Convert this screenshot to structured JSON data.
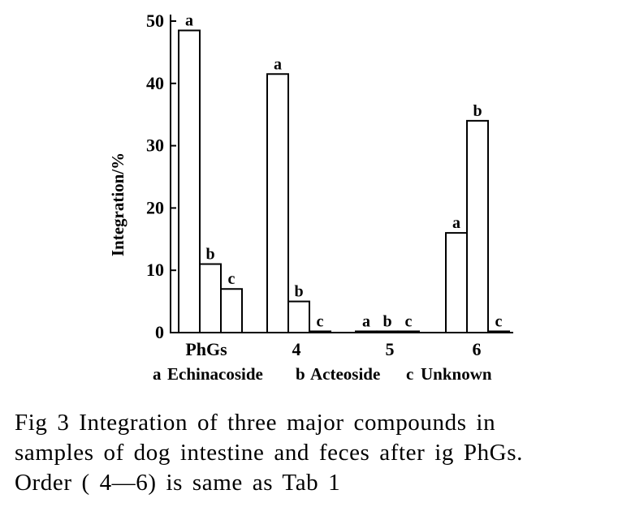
{
  "chart_data": {
    "type": "bar",
    "ylabel": "Integration/%",
    "ylim": [
      0,
      50
    ],
    "yticks": [
      0,
      10,
      20,
      30,
      40,
      50
    ],
    "grid": false,
    "categories": [
      "PhGs",
      "4",
      "5",
      "6"
    ],
    "series": [
      {
        "key": "a",
        "name": "Echinacoside",
        "values": [
          48.5,
          41.5,
          0.2,
          16.0
        ]
      },
      {
        "key": "b",
        "name": "Acteoside",
        "values": [
          11.0,
          5.0,
          0.2,
          34.0
        ]
      },
      {
        "key": "c",
        "name": "Unknown",
        "values": [
          7.0,
          0.2,
          0.2,
          0.2
        ]
      }
    ],
    "legend_items": [
      {
        "key": "a",
        "label": "Echinacoside"
      },
      {
        "key": "b",
        "label": "Acteoside"
      },
      {
        "key": "c",
        "label": "Unknown"
      }
    ],
    "legend_placement": "bottom",
    "bar_fill": "#ffffff",
    "bar_stroke": "#000000"
  },
  "caption": {
    "line1": "Fig 3    Integration of three major compounds in",
    "line2": "samples of dog intestine and feces after ig PhGs.",
    "line3": "Order ( 4—6) is same as Tab 1"
  }
}
